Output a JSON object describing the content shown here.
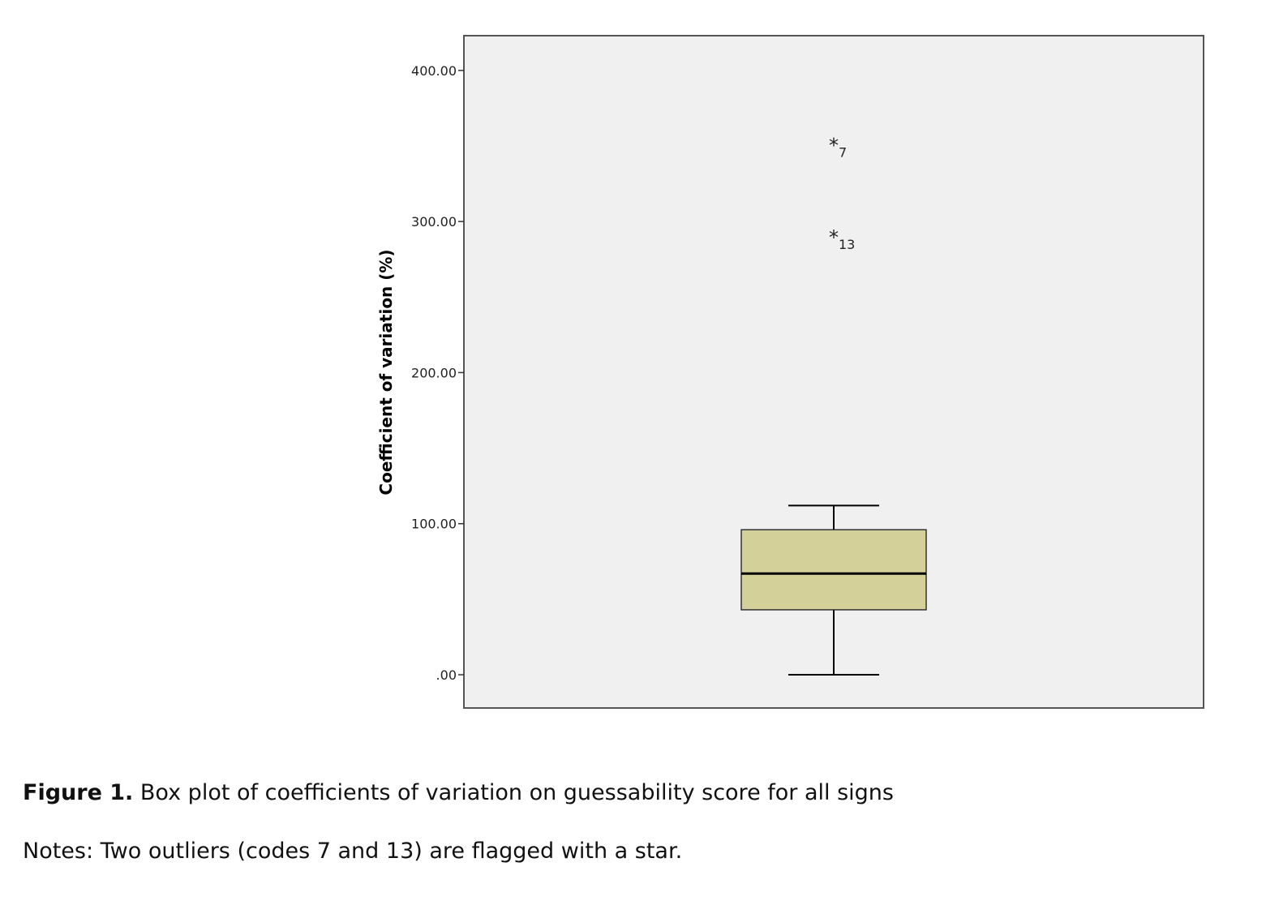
{
  "chart_data": {
    "type": "boxplot",
    "ylabel": "Coefficient of variation (%)",
    "xlabel": "",
    "ylim": [
      -22,
      423
    ],
    "yticks": [
      0,
      100,
      200,
      300,
      400
    ],
    "ytick_labels": [
      ".00",
      "100.00",
      "200.00",
      "300.00",
      "400.00"
    ],
    "box": {
      "min": 0,
      "q1": 43,
      "median": 67,
      "q3": 96,
      "max": 112
    },
    "outliers": [
      {
        "code": "7",
        "value": 353
      },
      {
        "code": "13",
        "value": 292
      }
    ],
    "grid": false,
    "colors": {
      "plot_background": "#f0f0f0",
      "box_fill": "#d4d09a",
      "frame": "#555555"
    }
  },
  "caption": {
    "label": "Figure 1.",
    "text": " Box plot of coefficients of variation on guessability score for all signs"
  },
  "notes": {
    "text": "Notes: Two outliers (codes 7 and 13) are flagged with a star."
  }
}
